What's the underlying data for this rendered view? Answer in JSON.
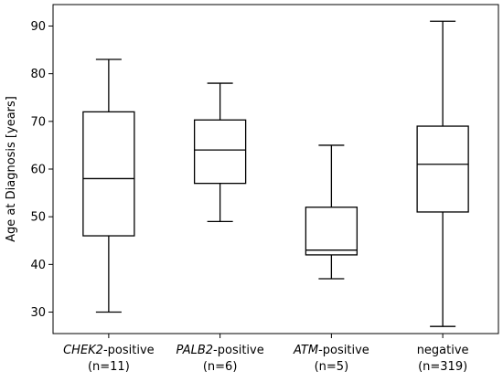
{
  "chart_data": {
    "type": "box",
    "ylabel": "Age at Diagnosis [years]",
    "xlabel": "",
    "ylim": [
      25.5,
      94.5
    ],
    "yticks": [
      30,
      40,
      50,
      60,
      70,
      80,
      90
    ],
    "grid": false,
    "categories": [
      {
        "gene": "CHEK2",
        "suffix": "-positive",
        "italic": true,
        "n": "(n=11)"
      },
      {
        "gene": "PALB2",
        "suffix": "-positive",
        "italic": true,
        "n": "(n=6)"
      },
      {
        "gene": "ATM",
        "suffix": "-positive",
        "italic": true,
        "n": "(n=5)"
      },
      {
        "gene": "negative",
        "suffix": "",
        "italic": false,
        "n": "(n=319)"
      }
    ],
    "boxes": [
      {
        "whislo": 30,
        "q1": 46,
        "med": 58,
        "q3": 72,
        "whishi": 83
      },
      {
        "whislo": 49,
        "q1": 57,
        "med": 64,
        "q3": 70.3,
        "whishi": 78
      },
      {
        "whislo": 37,
        "q1": 42,
        "med": 43,
        "q3": 52,
        "whishi": 65
      },
      {
        "whislo": 27,
        "q1": 51,
        "med": 61,
        "q3": 69,
        "whishi": 91
      }
    ]
  }
}
